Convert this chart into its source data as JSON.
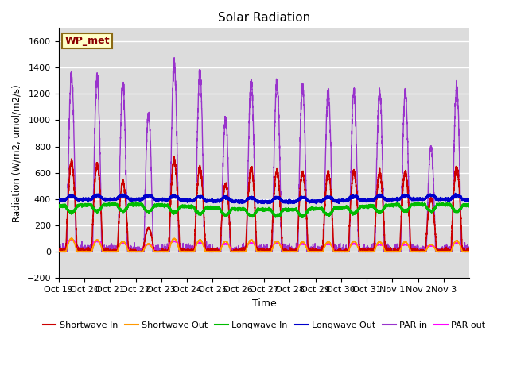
{
  "title": "Solar Radiation",
  "ylabel": "Radiation (W/m2, umol/m2/s)",
  "xlabel": "Time",
  "ylim": [
    -200,
    1700
  ],
  "yticks": [
    -200,
    0,
    200,
    400,
    600,
    800,
    1000,
    1200,
    1400,
    1600
  ],
  "background_color": "#dcdcdc",
  "annotation_text": "WP_met",
  "annotation_box_color": "#ffffc8",
  "annotation_box_edge": "#8b6914",
  "num_days": 16,
  "xtick_labels": [
    "Oct 19",
    "Oct 20",
    "Oct 21",
    "Oct 22",
    "Oct 23",
    "Oct 24",
    "Oct 25",
    "Oct 26",
    "Oct 27",
    "Oct 28",
    "Oct 29",
    "Oct 30",
    "Oct 31",
    "Nov 1",
    "Nov 2",
    "Nov 3"
  ],
  "series": {
    "shortwave_in": {
      "color": "#cc0000",
      "label": "Shortwave In",
      "lw": 1.2
    },
    "shortwave_out": {
      "color": "#ff9900",
      "label": "Shortwave Out",
      "lw": 1.2
    },
    "longwave_in": {
      "color": "#00bb00",
      "label": "Longwave In",
      "lw": 1.5
    },
    "longwave_out": {
      "color": "#0000cc",
      "label": "Longwave Out",
      "lw": 1.5
    },
    "par_in": {
      "color": "#9933cc",
      "label": "PAR in",
      "lw": 1.0
    },
    "par_out": {
      "color": "#ff00ff",
      "label": "PAR out",
      "lw": 1.2
    }
  },
  "peak_par_in": [
    1340,
    1320,
    1260,
    1050,
    1430,
    1360,
    1010,
    1290,
    1280,
    1260,
    1210,
    1220,
    1220,
    1200,
    800,
    1250
  ],
  "peak_sw_in": [
    680,
    660,
    530,
    180,
    700,
    640,
    510,
    640,
    610,
    600,
    600,
    610,
    600,
    600,
    400,
    640
  ],
  "peak_sw_out": [
    100,
    90,
    80,
    60,
    100,
    90,
    80,
    90,
    80,
    75,
    75,
    80,
    75,
    75,
    55,
    85
  ],
  "peak_par_out": [
    90,
    80,
    65,
    55,
    80,
    70,
    60,
    65,
    65,
    60,
    60,
    60,
    55,
    55,
    45,
    65
  ],
  "lw_in_base": 340,
  "lw_out_base": 390,
  "grid_color": "#ffffff",
  "grid_lw": 1.0
}
